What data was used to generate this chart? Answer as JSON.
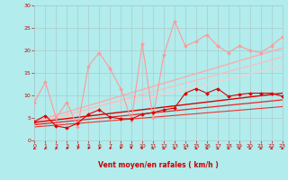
{
  "xlabel": "Vent moyen/en rafales ( km/h )",
  "xlabel_color": "#cc0000",
  "bg_color": "#b2ecec",
  "grid_color": "#aacccc",
  "xmin": 0,
  "xmax": 23,
  "ymin": 0,
  "ymax": 30,
  "yticks": [
    0,
    5,
    10,
    15,
    20,
    25,
    30
  ],
  "xticks": [
    0,
    1,
    2,
    3,
    4,
    5,
    6,
    7,
    8,
    9,
    10,
    11,
    12,
    13,
    14,
    15,
    16,
    17,
    18,
    19,
    20,
    21,
    22,
    23
  ],
  "line_light_scatter": {
    "x": [
      0,
      1,
      2,
      3,
      4,
      5,
      6,
      7,
      8,
      9,
      10,
      11,
      12,
      13,
      14,
      15,
      16,
      17,
      18,
      19,
      20,
      21,
      22,
      23
    ],
    "y": [
      8.5,
      13,
      5,
      8.5,
      3,
      16.5,
      19.5,
      16,
      11.5,
      4.5,
      21.5,
      5,
      19,
      26.5,
      21,
      22,
      23.5,
      21,
      19.5,
      21,
      20,
      19.5,
      21,
      23
    ],
    "color": "#ff9999",
    "lw": 0.8,
    "marker": "D",
    "ms": 2.0
  },
  "line_light_trend1": {
    "x": [
      0,
      23
    ],
    "y": [
      4.2,
      20.5
    ],
    "color": "#ffaaaa",
    "lw": 1.0
  },
  "line_light_trend2": {
    "x": [
      0,
      23
    ],
    "y": [
      3.8,
      18.5
    ],
    "color": "#ffbbbb",
    "lw": 0.9
  },
  "line_light_trend3": {
    "x": [
      0,
      23
    ],
    "y": [
      3.4,
      16.5
    ],
    "color": "#ffcccc",
    "lw": 0.8
  },
  "line_dark_scatter": {
    "x": [
      0,
      1,
      2,
      3,
      4,
      5,
      6,
      7,
      8,
      9,
      10,
      11,
      12,
      13,
      14,
      15,
      16,
      17,
      18,
      19,
      20,
      21,
      22,
      23
    ],
    "y": [
      4.2,
      5.5,
      3.2,
      2.8,
      3.8,
      5.8,
      6.8,
      5.2,
      4.8,
      4.8,
      5.8,
      6.2,
      6.8,
      7.2,
      10.5,
      11.5,
      10.5,
      11.5,
      9.8,
      10.2,
      10.5,
      10.5,
      10.5,
      9.8
    ],
    "color": "#dd0000",
    "lw": 0.8,
    "marker": "D",
    "ms": 2.0
  },
  "line_dark_trend1": {
    "x": [
      0,
      23
    ],
    "y": [
      4.0,
      10.5
    ],
    "color": "#dd0000",
    "lw": 1.0
  },
  "line_dark_trend2": {
    "x": [
      0,
      23
    ],
    "y": [
      3.5,
      9.0
    ],
    "color": "#ee2222",
    "lw": 0.9
  },
  "line_dark_trend3": {
    "x": [
      0,
      23
    ],
    "y": [
      3.0,
      7.5
    ],
    "color": "#ee3333",
    "lw": 0.8
  },
  "arrow_angles": [
    225,
    215,
    210,
    205,
    195,
    200,
    205,
    200,
    185,
    170,
    155,
    148,
    142,
    138,
    135,
    130,
    130,
    130,
    130,
    130,
    130,
    130,
    130,
    130
  ],
  "arrow_color": "#cc0000"
}
